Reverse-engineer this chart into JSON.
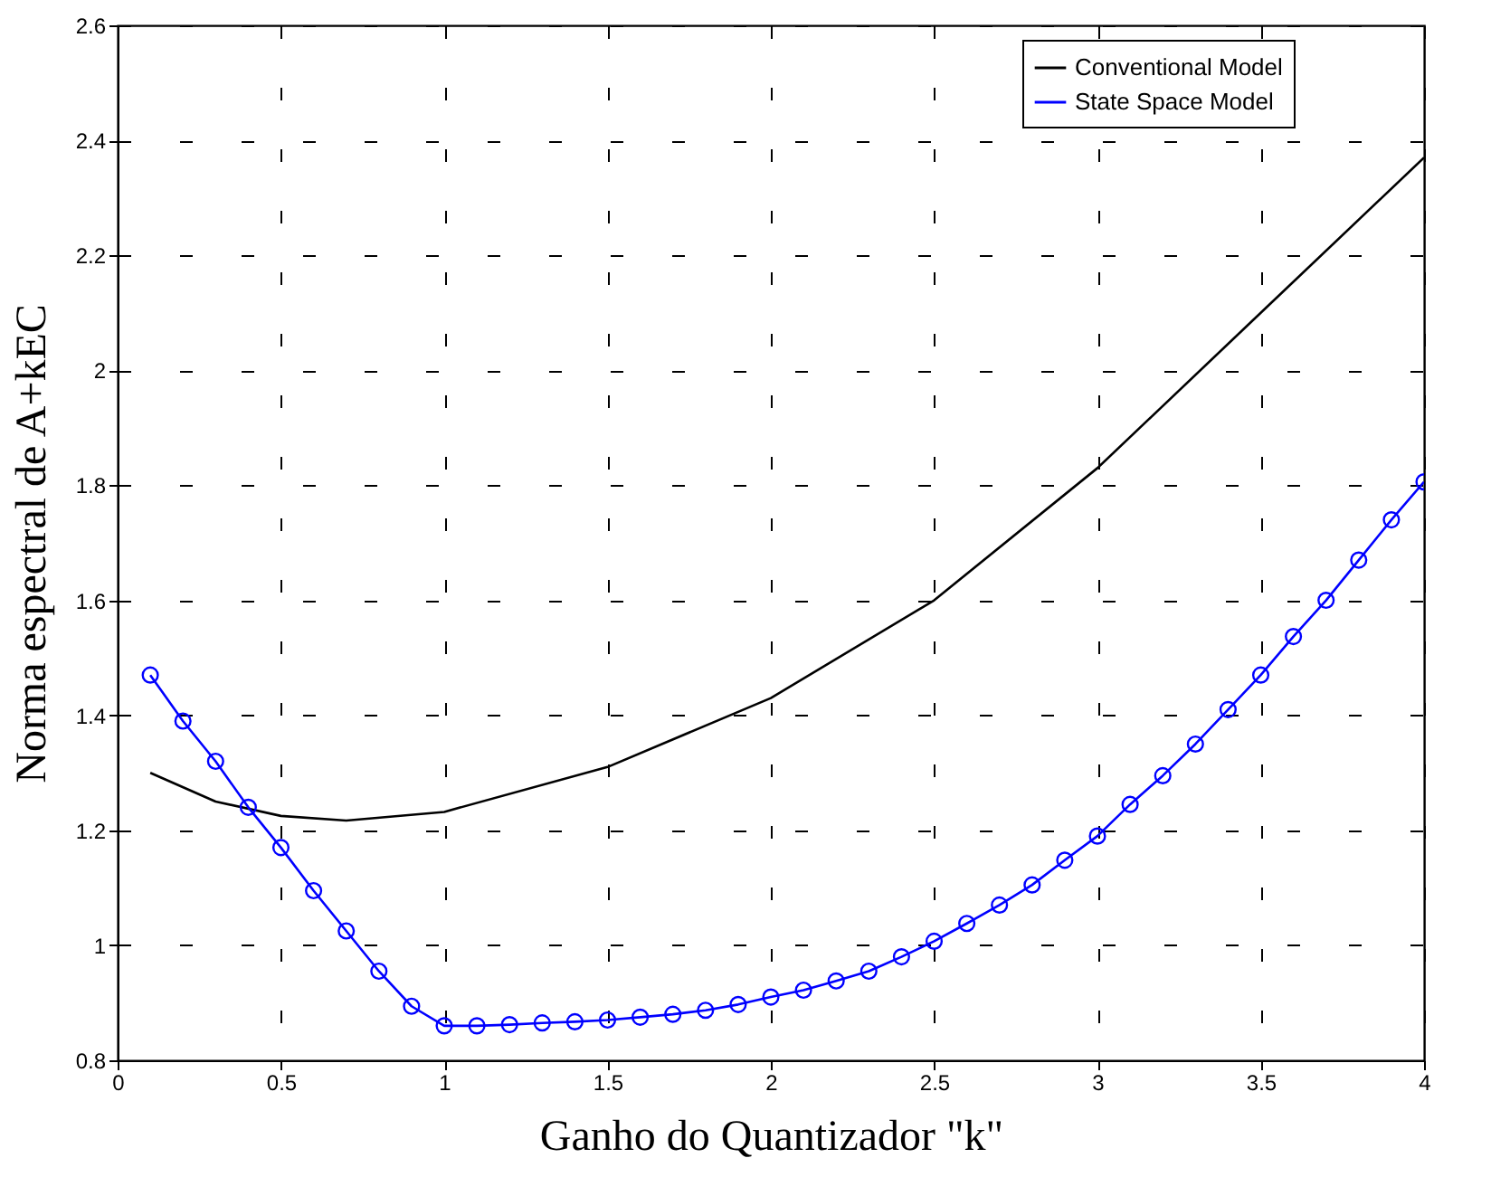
{
  "chart_data": {
    "type": "line",
    "xlabel": "Ganho do Quantizador \"k\"",
    "ylabel": "Norma espectral de A+kEC",
    "xlim": [
      0,
      4
    ],
    "xticks": [
      0,
      0.5,
      1,
      1.5,
      2,
      2.5,
      3,
      3.5,
      4
    ],
    "ylim": [
      0.8,
      2.6
    ],
    "yticks": [
      0.8,
      1,
      1.2,
      1.4,
      1.6,
      1.8,
      2,
      2.2,
      2.4,
      2.6
    ],
    "grid": true,
    "legend": "top right",
    "series": [
      {
        "name": "Conventional Model",
        "color": "#000000",
        "marker": "none",
        "x": [
          0.1,
          0.3,
          0.5,
          0.7,
          1.0,
          1.5,
          2.0,
          2.5,
          3.0,
          3.5,
          4.0
        ],
        "values": [
          1.3,
          1.25,
          1.225,
          1.217,
          1.232,
          1.31,
          1.43,
          1.6,
          1.83,
          2.1,
          2.37
        ]
      },
      {
        "name": "State Space Model",
        "color": "#0000ff",
        "marker": "circle",
        "x": [
          0.1,
          0.2,
          0.3,
          0.4,
          0.5,
          0.6,
          0.7,
          0.8,
          0.9,
          1.0,
          1.1,
          1.2,
          1.3,
          1.4,
          1.5,
          1.6,
          1.7,
          1.8,
          1.9,
          2.0,
          2.1,
          2.2,
          2.3,
          2.4,
          2.5,
          2.6,
          2.7,
          2.8,
          2.9,
          3.0,
          3.1,
          3.2,
          3.3,
          3.4,
          3.5,
          3.6,
          3.7,
          3.8,
          3.9,
          4.0
        ],
        "values": [
          1.47,
          1.39,
          1.32,
          1.24,
          1.17,
          1.095,
          1.025,
          0.955,
          0.894,
          0.86,
          0.86,
          0.862,
          0.865,
          0.867,
          0.87,
          0.875,
          0.88,
          0.887,
          0.897,
          0.91,
          0.922,
          0.938,
          0.955,
          0.98,
          1.007,
          1.038,
          1.07,
          1.105,
          1.148,
          1.19,
          1.245,
          1.295,
          1.35,
          1.41,
          1.47,
          1.537,
          1.6,
          1.67,
          1.74,
          1.806
        ]
      }
    ]
  }
}
